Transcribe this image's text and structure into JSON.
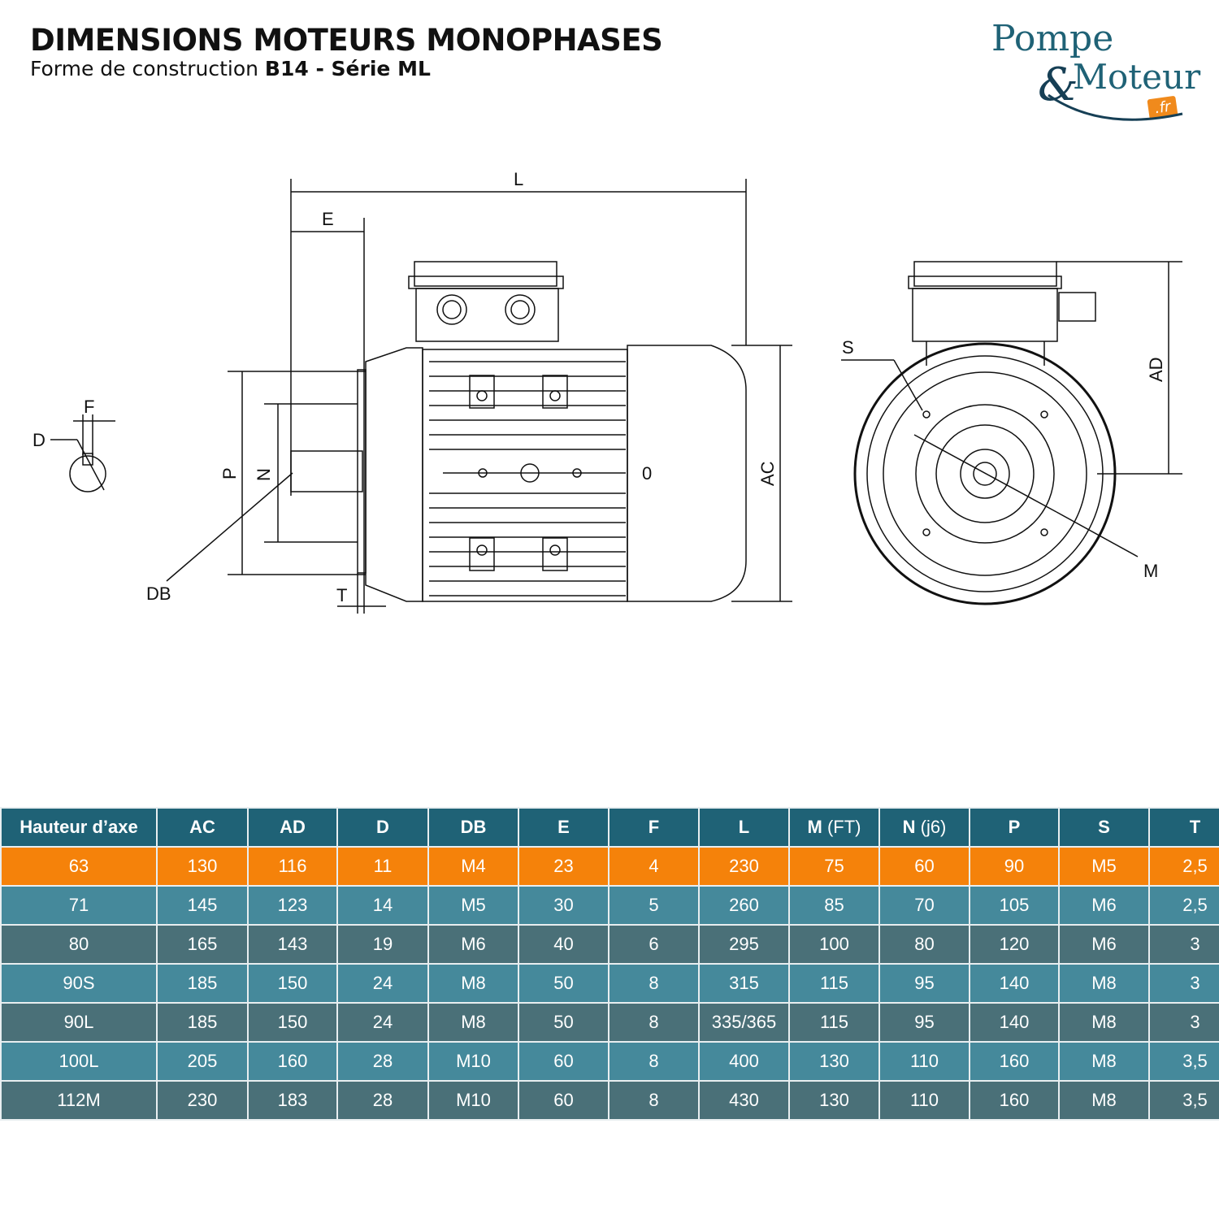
{
  "header": {
    "title": "DIMENSIONS MOTEURS MONOPHASES",
    "subtitle_prefix": "Forme de construction ",
    "subtitle_bold": "B14 - Série ML"
  },
  "logo": {
    "line1": "Pompe",
    "amp": "&",
    "line2": "Moteur",
    "tld": ".fr",
    "colors": {
      "primary": "#1f6276",
      "accent": "#f08a1c"
    }
  },
  "diagram": {
    "labels": {
      "L": "L",
      "E": "E",
      "F": "F",
      "D": "D",
      "P": "P",
      "N": "N",
      "DB": "DB",
      "T": "T",
      "AC": "AC",
      "AD": "AD",
      "S": "S",
      "M": "M",
      "zero": "0"
    }
  },
  "table": {
    "colors": {
      "header": "#1f6276",
      "highlight": "#f5820a",
      "row_light": "#45899b",
      "row_dark": "#4a7078"
    },
    "columns": [
      {
        "main": "Hauteur d’axe",
        "sub": ""
      },
      {
        "main": "AC",
        "sub": ""
      },
      {
        "main": "AD",
        "sub": ""
      },
      {
        "main": "D",
        "sub": ""
      },
      {
        "main": "DB",
        "sub": ""
      },
      {
        "main": "E",
        "sub": ""
      },
      {
        "main": "F",
        "sub": ""
      },
      {
        "main": "L",
        "sub": ""
      },
      {
        "main": "M",
        "sub": " (FT)"
      },
      {
        "main": "N",
        "sub": " (j6)"
      },
      {
        "main": "P",
        "sub": ""
      },
      {
        "main": "S",
        "sub": ""
      },
      {
        "main": "T",
        "sub": ""
      }
    ],
    "rows": [
      [
        "63",
        "130",
        "116",
        "11",
        "M4",
        "23",
        "4",
        "230",
        "75",
        "60",
        "90",
        "M5",
        "2,5"
      ],
      [
        "71",
        "145",
        "123",
        "14",
        "M5",
        "30",
        "5",
        "260",
        "85",
        "70",
        "105",
        "M6",
        "2,5"
      ],
      [
        "80",
        "165",
        "143",
        "19",
        "M6",
        "40",
        "6",
        "295",
        "100",
        "80",
        "120",
        "M6",
        "3"
      ],
      [
        "90S",
        "185",
        "150",
        "24",
        "M8",
        "50",
        "8",
        "315",
        "115",
        "95",
        "140",
        "M8",
        "3"
      ],
      [
        "90L",
        "185",
        "150",
        "24",
        "M8",
        "50",
        "8",
        "335/365",
        "115",
        "95",
        "140",
        "M8",
        "3"
      ],
      [
        "100L",
        "205",
        "160",
        "28",
        "M10",
        "60",
        "8",
        "400",
        "130",
        "110",
        "160",
        "M8",
        "3,5"
      ],
      [
        "112M",
        "230",
        "183",
        "28",
        "M10",
        "60",
        "8",
        "430",
        "130",
        "110",
        "160",
        "M8",
        "3,5"
      ]
    ]
  }
}
